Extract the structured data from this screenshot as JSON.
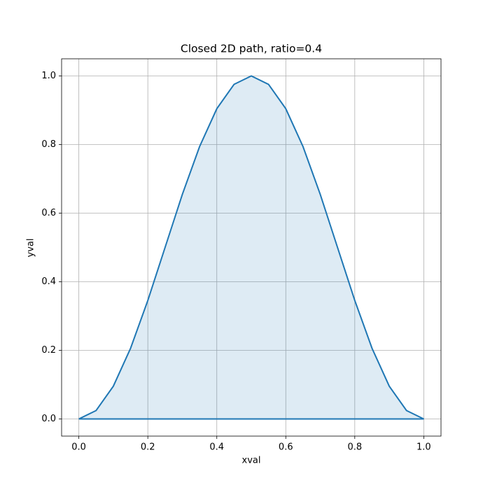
{
  "chart_data": {
    "type": "area",
    "title": "Closed 2D path, ratio=0.4",
    "x_label": "xval",
    "y_label": "yval",
    "color": "#1f77b4",
    "grid": true,
    "xlim": [
      -0.05,
      1.05
    ],
    "ylim": [
      -0.05,
      1.05
    ],
    "xticks": [
      {
        "value": 0,
        "label": "0.0"
      },
      {
        "value": 0.2,
        "label": "0.2"
      },
      {
        "value": 0.4,
        "label": "0.4"
      },
      {
        "value": 0.6,
        "label": "0.6"
      },
      {
        "value": 0.8,
        "label": "0.8"
      },
      {
        "value": 1,
        "label": "1.0"
      }
    ],
    "yticks": [
      {
        "value": 0,
        "label": "0.0"
      },
      {
        "value": 0.2,
        "label": "0.2"
      },
      {
        "value": 0.4,
        "label": "0.4"
      },
      {
        "value": 0.6,
        "label": "0.6"
      },
      {
        "value": 0.8,
        "label": "0.8"
      },
      {
        "value": 1,
        "label": "1.0"
      }
    ],
    "x": [
      0,
      0.05,
      0.1,
      0.15,
      0.2,
      0.25,
      0.3,
      0.35,
      0.4,
      0.45,
      0.5,
      0.55,
      0.6,
      0.65,
      0.7,
      0.75,
      0.8,
      0.85,
      0.9,
      0.95,
      1,
      0
    ],
    "values": [
      0,
      0.0245,
      0.0955,
      0.2061,
      0.3455,
      0.5,
      0.6545,
      0.7939,
      0.9045,
      0.9755,
      1,
      0.9755,
      0.9045,
      0.7939,
      0.6545,
      0.5,
      0.3455,
      0.2061,
      0.0955,
      0.0245,
      0,
      0
    ]
  }
}
